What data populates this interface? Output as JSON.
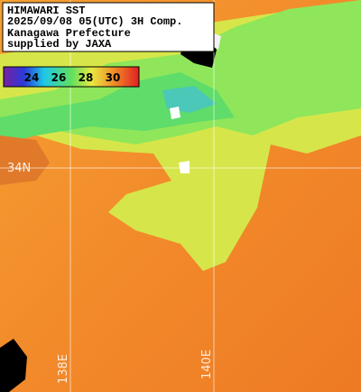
{
  "header": {
    "lines": [
      "HIMAWARI SST",
      "2025/09/08 05(UTC) 3H Comp.",
      "Kanagawa Prefecture",
      "supplied by JAXA"
    ]
  },
  "colorbar": {
    "labels": [
      24,
      26,
      28,
      30
    ]
  },
  "grid": {
    "lat_labels": [
      "34N"
    ],
    "lon_labels": [
      "138E",
      "140E"
    ]
  }
}
